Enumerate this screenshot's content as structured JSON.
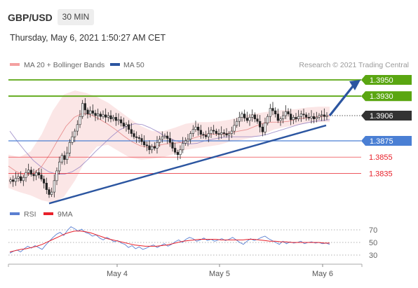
{
  "header": {
    "symbol": "GBP/USD",
    "timeframe": "30 MIN",
    "timestamp": "Thursday, May 6, 2021 1:50:27 AM CET"
  },
  "legend": {
    "bollinger": "MA 20 + Bollinger Bands",
    "ma50": "MA 50",
    "credit": "Research © 2021 Trading Central",
    "rsi": "RSI",
    "rsi_ma": "9MA"
  },
  "colors": {
    "resistance": "#5aa611",
    "support": "#4a7fd4",
    "support_red": "#e8202a",
    "current": "#333333",
    "trendline": "#2b55a0",
    "bollinger": "#f4a0a0",
    "rsi": "#5b7fd1",
    "rsi_ma": "#e8202a"
  },
  "chart_data": [
    {
      "type": "candlestick",
      "x_ticks": [
        "May 4",
        "May 5",
        "May 6"
      ],
      "y_range": [
        1.38,
        1.397
      ],
      "levels": [
        {
          "label": "1.3950",
          "value": 1.395,
          "kind": "resistance"
        },
        {
          "label": "1.3930",
          "value": 1.393,
          "kind": "resistance"
        },
        {
          "label": "1.3906",
          "value": 1.3906,
          "kind": "current"
        },
        {
          "label": "1.3875",
          "value": 1.3875,
          "kind": "support"
        },
        {
          "label": "1.3855",
          "value": 1.3855,
          "kind": "support_red"
        },
        {
          "label": "1.3835",
          "value": 1.3835,
          "kind": "support_red"
        }
      ],
      "trendline": {
        "from": 1.3798,
        "to": 1.3894
      },
      "forecast_arrow": {
        "from": 1.3906,
        "to": 1.395
      },
      "series_close": [
        1.3827,
        1.3825,
        1.3829,
        1.3831,
        1.3826,
        1.383,
        1.3836,
        1.3839,
        1.3834,
        1.3832,
        1.3836,
        1.3833,
        1.3828,
        1.3823,
        1.3815,
        1.3809,
        1.3812,
        1.3826,
        1.3838,
        1.3849,
        1.3857,
        1.3852,
        1.386,
        1.3873,
        1.388,
        1.3887,
        1.3895,
        1.3905,
        1.3921,
        1.3913,
        1.3908,
        1.3912,
        1.3909,
        1.3906,
        1.3908,
        1.3905,
        1.3907,
        1.3904,
        1.3906,
        1.3902,
        1.3904,
        1.39,
        1.3901,
        1.3897,
        1.3893,
        1.3895,
        1.3889,
        1.3884,
        1.388,
        1.3879,
        1.3878,
        1.3874,
        1.387,
        1.3869,
        1.3864,
        1.3868,
        1.3866,
        1.3873,
        1.3877,
        1.388,
        1.3881,
        1.3878,
        1.3873,
        1.3866,
        1.3861,
        1.3858,
        1.3864,
        1.3872,
        1.3875,
        1.3877,
        1.3884,
        1.3889,
        1.3892,
        1.3888,
        1.3883,
        1.3882,
        1.388,
        1.3884,
        1.3888,
        1.3887,
        1.3884,
        1.3883,
        1.3885,
        1.3884,
        1.3882,
        1.3884,
        1.3887,
        1.3894,
        1.3899,
        1.3904,
        1.3908,
        1.3903,
        1.39,
        1.3904,
        1.3907,
        1.3902,
        1.3899,
        1.3892,
        1.3886,
        1.3897,
        1.3905,
        1.3915,
        1.3912,
        1.3908,
        1.39,
        1.3902,
        1.3906,
        1.3911,
        1.3908,
        1.3901,
        1.3904,
        1.3902,
        1.3905,
        1.3908,
        1.3907,
        1.3904,
        1.3903,
        1.3905,
        1.3902,
        1.3904,
        1.3906,
        1.3907,
        1.3905,
        1.3906
      ],
      "ma50": [
        1.3887,
        1.3874,
        1.3862,
        1.3851,
        1.3843,
        1.3837,
        1.3834,
        1.3834,
        1.3837,
        1.3843,
        1.3852,
        1.3862,
        1.3871,
        1.388,
        1.3888,
        1.3893,
        1.3896,
        1.3895,
        1.3891,
        1.3886,
        1.388,
        1.3876,
        1.3873,
        1.3871,
        1.3872,
        1.3875,
        1.3877,
        1.3879,
        1.388,
        1.388,
        1.388,
        1.388,
        1.3881,
        1.3883,
        1.3886,
        1.3889,
        1.3892,
        1.3895,
        1.3897,
        1.3899,
        1.39,
        1.3901
      ],
      "ma20": [
        1.3844,
        1.3837,
        1.3833,
        1.3835,
        1.3843,
        1.3858,
        1.3876,
        1.3893,
        1.3904,
        1.3909,
        1.3907,
        1.3902,
        1.3896,
        1.3889,
        1.3881,
        1.3874,
        1.3869,
        1.3867,
        1.3869,
        1.3871,
        1.3872,
        1.3873,
        1.3877,
        1.388,
        1.3883,
        1.3883,
        1.3883,
        1.3885,
        1.3887,
        1.3889,
        1.3893,
        1.3897,
        1.3898,
        1.3898,
        1.3899,
        1.3902,
        1.3903,
        1.3904,
        1.3905,
        1.3906
      ],
      "bollinger_upper": [
        1.3858,
        1.3855,
        1.3862,
        1.3883,
        1.3912,
        1.3932,
        1.3937,
        1.3934,
        1.3929,
        1.3922,
        1.3912,
        1.3902,
        1.3893,
        1.3887,
        1.3887,
        1.3891,
        1.3896,
        1.3898,
        1.3898,
        1.3899,
        1.3901,
        1.3905,
        1.3908,
        1.391,
        1.3912,
        1.3913,
        1.3914,
        1.3916,
        1.3917,
        1.3917
      ],
      "bollinger_lower": [
        1.3817,
        1.3812,
        1.3808,
        1.3802,
        1.3799,
        1.3806,
        1.3826,
        1.3852,
        1.3868,
        1.387,
        1.3862,
        1.3854,
        1.3852,
        1.3853,
        1.3855,
        1.3859,
        1.3864,
        1.3866,
        1.3868,
        1.387,
        1.3874,
        1.3876,
        1.3879,
        1.3883,
        1.3889,
        1.3892,
        1.3894,
        1.3897,
        1.3898,
        1.3898
      ]
    },
    {
      "type": "line",
      "title": "RSI",
      "y_ticks": [
        "70",
        "50",
        "30"
      ],
      "y_range": [
        20,
        80
      ],
      "series": [
        {
          "name": "RSI",
          "values": [
            33,
            36,
            38,
            35,
            40,
            44,
            41,
            45,
            42,
            39,
            46,
            52,
            58,
            63,
            66,
            61,
            69,
            75,
            72,
            68,
            71,
            66,
            64,
            60,
            62,
            57,
            54,
            58,
            55,
            51,
            53,
            49,
            47,
            42,
            45,
            40,
            43,
            39,
            41,
            44,
            46,
            42,
            45,
            48,
            44,
            47,
            51,
            54,
            50,
            55,
            58,
            56,
            52,
            54,
            57,
            53,
            55,
            52,
            54,
            56,
            53,
            55,
            58,
            54,
            50,
            47,
            52,
            56,
            53,
            55,
            58,
            60,
            56,
            53,
            50,
            47,
            52,
            48,
            51,
            49,
            50,
            52,
            48,
            50,
            51,
            49,
            50,
            48,
            49,
            47
          ]
        },
        {
          "name": "9MA",
          "values": [
            35,
            37,
            39,
            40,
            42,
            44,
            47,
            51,
            55,
            59,
            63,
            66,
            68,
            68,
            67,
            65,
            62,
            59,
            56,
            54,
            52,
            50,
            48,
            46,
            45,
            44,
            44,
            44,
            45,
            46,
            48,
            50,
            52,
            53,
            54,
            55,
            55,
            55,
            55,
            54,
            54,
            54,
            54,
            54,
            55,
            55,
            54,
            53,
            52,
            52,
            51,
            51,
            50,
            50,
            50,
            50,
            50,
            50,
            49,
            49
          ]
        }
      ]
    }
  ]
}
